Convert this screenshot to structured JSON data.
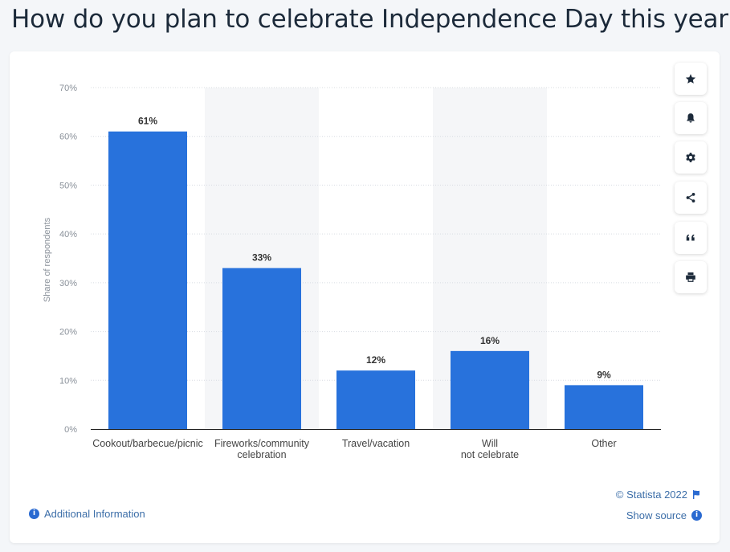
{
  "page": {
    "title": "How do you plan to celebrate Independence Day this year?"
  },
  "colors": {
    "bar": "#2872dc",
    "band": "#f5f6f8",
    "grid": "#d8dce2",
    "axis_text": "#8a919a",
    "label_text": "#333333"
  },
  "chart_data": {
    "type": "bar",
    "categories": [
      "Cookout/barbecue/picnic",
      "Fireworks/community celebration",
      "Travel/vacation",
      "Will not celebrate",
      "Other"
    ],
    "values": [
      61,
      33,
      12,
      16,
      9
    ],
    "data_labels": [
      "61%",
      "33%",
      "12%",
      "16%",
      "9%"
    ],
    "ylabel": "Share of respondents",
    "ylim": [
      0,
      70
    ],
    "yticks": [
      0,
      10,
      20,
      30,
      40,
      50,
      60,
      70
    ],
    "ytick_labels": [
      "0%",
      "10%",
      "20%",
      "30%",
      "40%",
      "50%",
      "60%",
      "70%"
    ],
    "grid": true
  },
  "toolbar": {
    "items": [
      {
        "icon": "star-icon",
        "name": "favorite-button"
      },
      {
        "icon": "bell-icon",
        "name": "notification-button"
      },
      {
        "icon": "gear-icon",
        "name": "settings-button"
      },
      {
        "icon": "share-icon",
        "name": "share-button"
      },
      {
        "icon": "quote-icon",
        "name": "cite-button"
      },
      {
        "icon": "print-icon",
        "name": "print-button"
      }
    ]
  },
  "footer": {
    "credit": "© Statista 2022",
    "show_source": "Show source",
    "additional_info": "Additional Information"
  }
}
